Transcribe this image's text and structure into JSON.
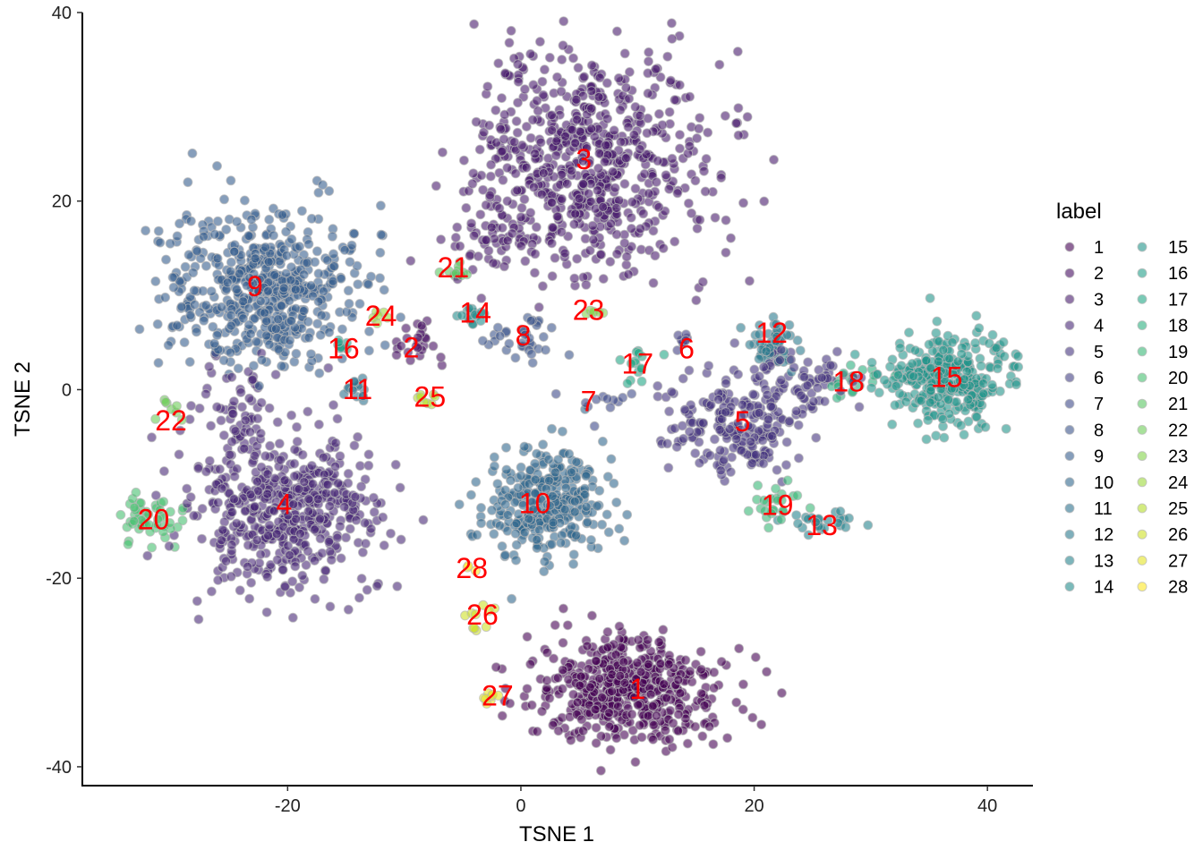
{
  "chart_data": {
    "type": "scatter",
    "title": "",
    "xlabel": "TSNE 1",
    "ylabel": "TSNE 2",
    "xlim": [
      -37.6,
      43.9
    ],
    "ylim": [
      -42,
      40
    ],
    "xticks": [
      -20,
      0,
      20,
      40
    ],
    "yticks": [
      -40,
      -20,
      0,
      20,
      40
    ],
    "grid": false,
    "legend": {
      "title": "label",
      "placement": "right",
      "columns": 2
    },
    "colormap": [
      "#440154",
      "#482475",
      "#414487",
      "#355F8D",
      "#2A788E",
      "#21918C",
      "#22A884",
      "#44BF70",
      "#7AD151",
      "#BDDF26",
      "#FDE725"
    ],
    "label_color": "#ff0000",
    "clusters": [
      {
        "label": "1",
        "center": [
          10,
          -32
        ],
        "blobs": [
          [
            9,
            -32,
            4,
            2.8,
            520
          ]
        ]
      },
      {
        "label": "2",
        "center": [
          -9.4,
          4.2
        ],
        "blobs": [
          [
            -9,
            5,
            1.2,
            1,
            25
          ]
        ]
      },
      {
        "label": "3",
        "center": [
          5.4,
          24.2
        ],
        "blobs": [
          [
            6,
            24,
            5,
            6,
            700
          ],
          [
            -3,
            16,
            2,
            2,
            40
          ]
        ]
      },
      {
        "label": "4",
        "center": [
          -20.3,
          -12.4
        ],
        "blobs": [
          [
            -20,
            -13,
            4,
            4,
            520
          ],
          [
            -24,
            -2,
            1.5,
            3,
            60
          ]
        ]
      },
      {
        "label": "5",
        "center": [
          19,
          -3.6
        ],
        "blobs": [
          [
            18,
            -4,
            3,
            2.5,
            200
          ],
          [
            24,
            1,
            2.5,
            2,
            80
          ]
        ]
      },
      {
        "label": "6",
        "center": [
          14.2,
          4.1
        ],
        "blobs": [
          [
            14,
            5,
            0.6,
            0.6,
            8
          ]
        ]
      },
      {
        "label": "7",
        "center": [
          5.8,
          -1.5
        ],
        "blobs": [
          [
            7,
            -1,
            1.2,
            0.6,
            12
          ]
        ]
      },
      {
        "label": "8",
        "center": [
          0.2,
          5.5
        ],
        "blobs": [
          [
            0,
            5.5,
            1.5,
            1,
            35
          ]
        ]
      },
      {
        "label": "9",
        "center": [
          -22.8,
          10.7
        ],
        "blobs": [
          [
            -22,
            11,
            4,
            4,
            550
          ]
        ]
      },
      {
        "label": "10",
        "center": [
          1.2,
          -12.3
        ],
        "blobs": [
          [
            2,
            -12,
            2.5,
            3,
            320
          ]
        ]
      },
      {
        "label": "11",
        "center": [
          -14,
          -0.2
        ],
        "blobs": [
          [
            -14,
            0,
            0.8,
            0.8,
            15
          ]
        ]
      },
      {
        "label": "12",
        "center": [
          21.5,
          5.8
        ],
        "blobs": [
          [
            21.5,
            5,
            1,
            1.5,
            50
          ]
        ]
      },
      {
        "label": "13",
        "center": [
          25.8,
          -14.6
        ],
        "blobs": [
          [
            26,
            -14,
            1.5,
            0.7,
            25
          ]
        ]
      },
      {
        "label": "14",
        "center": [
          -3.9,
          7.9
        ],
        "blobs": [
          [
            -4,
            8,
            0.8,
            0.8,
            15
          ]
        ]
      },
      {
        "label": "15",
        "center": [
          36.5,
          1.1
        ],
        "blobs": [
          [
            36.5,
            1,
            2.5,
            2.3,
            320
          ]
        ]
      },
      {
        "label": "16",
        "center": [
          -15.2,
          4.1
        ],
        "blobs": [
          [
            -15.5,
            4.5,
            0.6,
            0.6,
            8
          ]
        ]
      },
      {
        "label": "17",
        "center": [
          10,
          2.5
        ],
        "blobs": [
          [
            10,
            3,
            0.7,
            1,
            15
          ]
        ]
      },
      {
        "label": "18",
        "center": [
          28.1,
          0.6
        ],
        "blobs": [
          [
            28,
            1,
            1.2,
            0.8,
            20
          ]
        ]
      },
      {
        "label": "19",
        "center": [
          22,
          -12.5
        ],
        "blobs": [
          [
            22,
            -12,
            1,
            1,
            25
          ]
        ]
      },
      {
        "label": "20",
        "center": [
          -31.5,
          -14
        ],
        "blobs": [
          [
            -32,
            -14,
            1.3,
            1.3,
            50
          ]
        ]
      },
      {
        "label": "21",
        "center": [
          -5.8,
          12.7
        ],
        "blobs": [
          [
            -5.5,
            12.5,
            0.7,
            0.5,
            12
          ]
        ]
      },
      {
        "label": "22",
        "center": [
          -30,
          -3.5
        ],
        "blobs": [
          [
            -30,
            -2,
            0.6,
            0.8,
            8
          ]
        ]
      },
      {
        "label": "23",
        "center": [
          5.8,
          8.2
        ],
        "blobs": [
          [
            6,
            8,
            0.5,
            0.4,
            6
          ]
        ]
      },
      {
        "label": "24",
        "center": [
          -12,
          7.6
        ],
        "blobs": [
          [
            -12,
            7.8,
            0.5,
            0.4,
            6
          ]
        ]
      },
      {
        "label": "25",
        "center": [
          -7.8,
          -1
        ],
        "blobs": [
          [
            -8,
            -1,
            0.6,
            0.4,
            8
          ]
        ]
      },
      {
        "label": "26",
        "center": [
          -3.3,
          -24.1
        ],
        "blobs": [
          [
            -3.5,
            -24,
            0.5,
            0.8,
            10
          ]
        ]
      },
      {
        "label": "27",
        "center": [
          -2,
          -32.7
        ],
        "blobs": [
          [
            -2.5,
            -32.5,
            0.6,
            0.4,
            8
          ]
        ]
      },
      {
        "label": "28",
        "center": [
          -4.2,
          -19.2
        ],
        "blobs": [
          [
            -4.5,
            -19,
            0.3,
            0.3,
            3
          ]
        ]
      }
    ]
  }
}
